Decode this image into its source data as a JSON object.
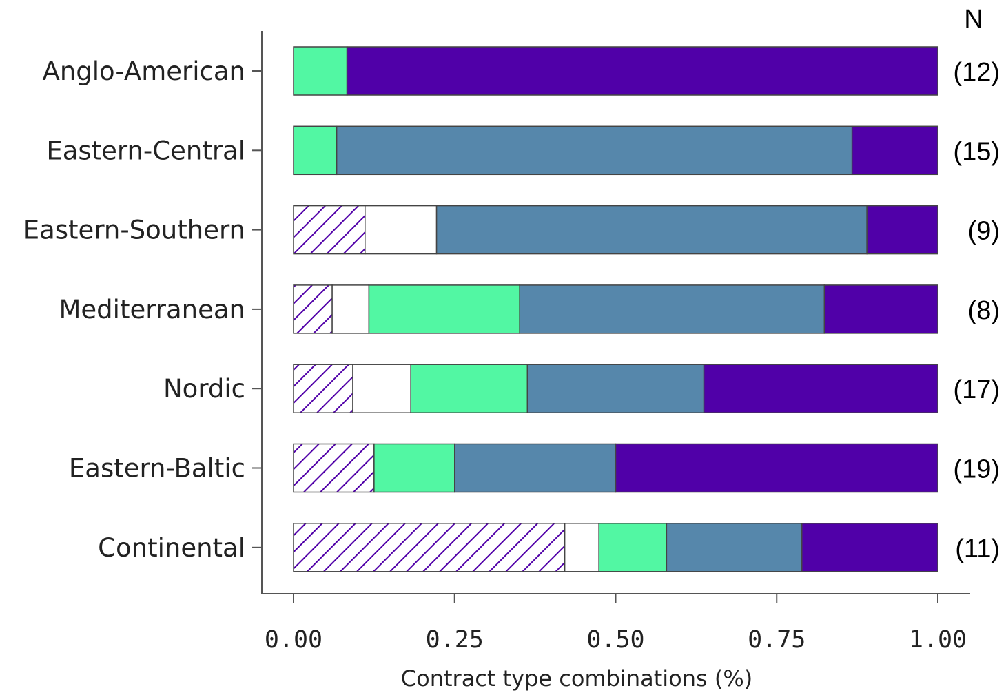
{
  "chart_data": {
    "type": "bar",
    "orientation": "horizontal",
    "stacked": true,
    "title": "",
    "xlabel": "Contract type combinations (%)",
    "ylabel": "",
    "xlim": [
      0,
      1
    ],
    "xticks": [
      "0.00",
      "0.25",
      "0.50",
      "0.75",
      "1.00"
    ],
    "n_header": "N",
    "categories": [
      "Anglo-American",
      "Eastern-Central",
      "Eastern-Southern",
      "Mediterranean",
      "Nordic",
      "Eastern-Baltic",
      "Continental"
    ],
    "n_labels": [
      "(12)",
      "(15)",
      "(9)",
      "(8)",
      "(17)",
      "(19)",
      "(11)"
    ],
    "series": [
      {
        "color": "#5000a8",
        "pattern": "hatched",
        "values": [
          0,
          0,
          0.111,
          0.06,
          0.092,
          0.125,
          0.421
        ]
      },
      {
        "color": "#ffffff",
        "pattern": "solid",
        "values": [
          0,
          0,
          0.111,
          0.057,
          0.09,
          0,
          0.053
        ]
      },
      {
        "color": "#52f7a3",
        "pattern": "solid",
        "values": [
          0.083,
          0.067,
          0,
          0.234,
          0.181,
          0.125,
          0.105
        ]
      },
      {
        "color": "#5687ab",
        "pattern": "solid",
        "values": [
          0,
          0.8,
          0.668,
          0.473,
          0.274,
          0.25,
          0.21
        ]
      },
      {
        "color": "#5000a8",
        "pattern": "solid",
        "values": [
          0.917,
          0.133,
          0.11,
          0.176,
          0.363,
          0.5,
          0.211
        ]
      }
    ],
    "legend": "none",
    "grid": false
  }
}
